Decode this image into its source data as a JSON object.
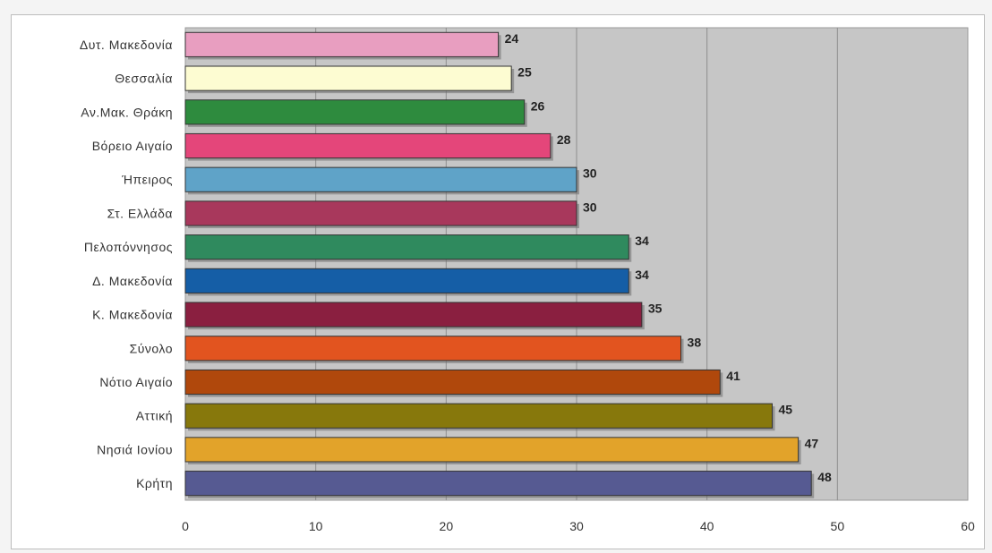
{
  "chart_data": {
    "type": "bar",
    "orientation": "horizontal",
    "title": "",
    "xlabel": "",
    "ylabel": "",
    "xlim": [
      0,
      60
    ],
    "x_ticks": [
      0,
      10,
      20,
      30,
      40,
      50,
      60
    ],
    "grid": true,
    "legend": "none",
    "categories": [
      "Δυτ. Μακεδονία",
      "Θεσσαλία",
      "Αν.Μακ. Θράκη",
      "Βόρειο Αιγαίο",
      "Ήπειρος",
      "Στ. Ελλάδα",
      "Πελοπόννησος",
      "Δ. Μακεδονία",
      "Κ. Μακεδονία",
      "Σύνολο",
      "Νότιο Αιγαίο",
      "Αττική",
      "Νησιά Ιονίου",
      "Κρήτη"
    ],
    "values": [
      24,
      25,
      26,
      28,
      30,
      30,
      34,
      34,
      35,
      38,
      41,
      45,
      47,
      48
    ],
    "value_labels": [
      "24",
      "25",
      "26",
      "28",
      "30",
      "30",
      "34",
      "34",
      "35",
      "38",
      "41",
      "45",
      "47",
      "48"
    ],
    "colors": [
      "#e89ec0",
      "#fdfcd2",
      "#2e8b3e",
      "#e4467a",
      "#5fa3c8",
      "#a8385c",
      "#2f8a5e",
      "#155ea6",
      "#8a1f40",
      "#e2541f",
      "#b0480c",
      "#87780c",
      "#e2a32a",
      "#565a92"
    ],
    "plot_background": "#c6c6c6"
  }
}
